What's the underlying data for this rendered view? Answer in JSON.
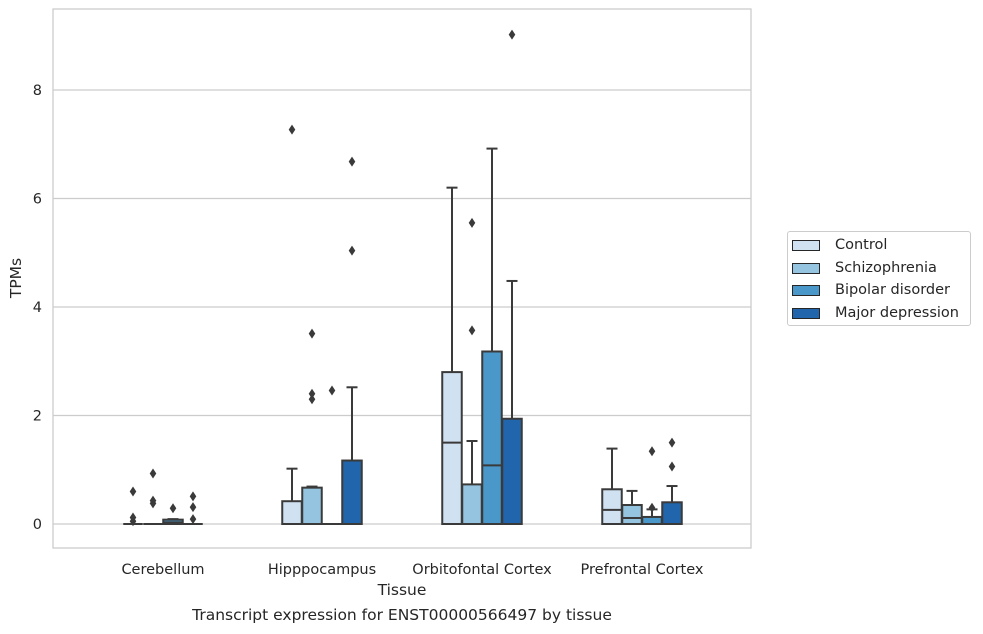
{
  "chart_data": {
    "type": "box",
    "title": "",
    "xlabel": "Tissue",
    "ylabel": "TPMs",
    "ylim": [
      -0.45,
      9.6
    ],
    "yticks": [
      0,
      2,
      4,
      6,
      8
    ],
    "categories": [
      "Cerebellum",
      "Hipppocampus",
      "Orbitofontal Cortex",
      "Prefrontal Cortex"
    ],
    "grid": "horizontal",
    "legend_position": "right",
    "series": [
      {
        "name": "Control",
        "color": "#d0e1f2",
        "boxes": [
          {
            "q1": 0,
            "median": 0,
            "q3": 0,
            "whislo": 0,
            "whishi": 0,
            "fliers": [
              0.6,
              0.12,
              0.05
            ]
          },
          {
            "q1": 0,
            "median": 0,
            "q3": 0.42,
            "whislo": 0,
            "whishi": 1.02,
            "fliers": [
              7.27
            ]
          },
          {
            "q1": 0,
            "median": 1.5,
            "q3": 2.8,
            "whislo": 0,
            "whishi": 6.2,
            "fliers": []
          },
          {
            "q1": 0,
            "median": 0.26,
            "q3": 0.64,
            "whislo": 0,
            "whishi": 1.39,
            "fliers": []
          }
        ]
      },
      {
        "name": "Schizophrenia",
        "color": "#94c4df",
        "boxes": [
          {
            "q1": 0,
            "median": 0,
            "q3": 0,
            "whislo": 0,
            "whishi": 0,
            "fliers": [
              0.93,
              0.43,
              0.38
            ]
          },
          {
            "q1": 0,
            "median": 0,
            "q3": 0.67,
            "whislo": 0,
            "whishi": 0.69,
            "fliers": [
              3.51,
              2.4,
              2.3
            ]
          },
          {
            "q1": 0,
            "median": 0,
            "q3": 0.73,
            "whislo": 0,
            "whishi": 1.53,
            "fliers": [
              5.55,
              3.57
            ]
          },
          {
            "q1": 0,
            "median": 0.11,
            "q3": 0.35,
            "whislo": 0,
            "whishi": 0.61,
            "fliers": []
          }
        ]
      },
      {
        "name": "Bipolar disorder",
        "color": "#4a98c9",
        "boxes": [
          {
            "q1": 0,
            "median": 0.03,
            "q3": 0.08,
            "whislo": 0,
            "whishi": 0.09,
            "fliers": [
              0.29
            ]
          },
          {
            "q1": 0,
            "median": 0,
            "q3": 0,
            "whislo": 0,
            "whishi": 0,
            "fliers": [
              2.46
            ]
          },
          {
            "q1": 0,
            "median": 1.08,
            "q3": 3.18,
            "whislo": 0,
            "whishi": 6.92,
            "fliers": []
          },
          {
            "q1": 0,
            "median": 0,
            "q3": 0.13,
            "whislo": 0,
            "whishi": 0.27,
            "fliers": [
              1.34,
              0.3
            ]
          }
        ]
      },
      {
        "name": "Major depression",
        "color": "#2166ac",
        "boxes": [
          {
            "q1": 0,
            "median": 0,
            "q3": 0,
            "whislo": 0,
            "whishi": 0,
            "fliers": [
              0.51,
              0.31,
              0.09
            ]
          },
          {
            "q1": 0,
            "median": 0,
            "q3": 1.17,
            "whislo": 0,
            "whishi": 2.52,
            "fliers": [
              6.68,
              5.04
            ]
          },
          {
            "q1": 0,
            "median": 0,
            "q3": 1.94,
            "whislo": 0,
            "whishi": 4.48,
            "fliers": [
              9.02
            ]
          },
          {
            "q1": 0,
            "median": 0,
            "q3": 0.4,
            "whislo": 0,
            "whishi": 0.7,
            "fliers": [
              1.5,
              1.06
            ]
          }
        ]
      }
    ]
  },
  "caption": "Transcript expression for ENST00000566497 by tissue"
}
